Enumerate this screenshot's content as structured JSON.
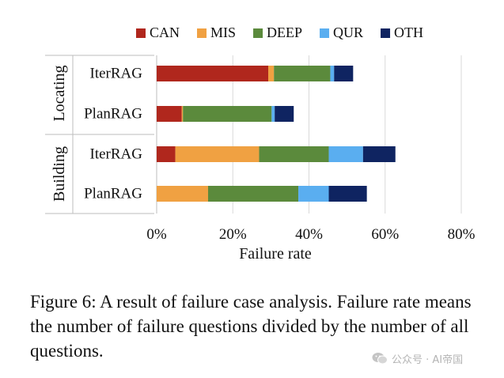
{
  "chart_data": {
    "type": "bar",
    "orientation": "horizontal",
    "stacked": true,
    "title": "",
    "xlabel": "Failure rate",
    "ylabel": "",
    "xlim": [
      0,
      0.8
    ],
    "xticks": [
      0,
      0.2,
      0.4,
      0.6,
      0.8
    ],
    "xtick_labels": [
      "0%",
      "20%",
      "40%",
      "60%",
      "80%"
    ],
    "grid": "vertical major gridlines",
    "legend_position": "top",
    "groups": [
      {
        "label": "Locating",
        "categories": [
          "IterRAG",
          "PlanRAG"
        ]
      },
      {
        "label": "Building",
        "categories": [
          "IterRAG",
          "PlanRAG"
        ]
      }
    ],
    "series": [
      {
        "name": "CAN",
        "color": "#b0271d",
        "values": [
          0.293,
          0.066,
          0.049,
          0.0
        ]
      },
      {
        "name": "MIS",
        "color": "#f0a142",
        "values": [
          0.015,
          0.003,
          0.22,
          0.135
        ]
      },
      {
        "name": "DEEP",
        "color": "#5b8a3c",
        "values": [
          0.148,
          0.233,
          0.183,
          0.237
        ]
      },
      {
        "name": "QUR",
        "color": "#5aaef0",
        "values": [
          0.01,
          0.008,
          0.09,
          0.08
        ]
      },
      {
        "name": "OTH",
        "color": "#0f2461",
        "values": [
          0.05,
          0.05,
          0.085,
          0.1
        ]
      }
    ]
  },
  "caption": "Figure 6: A result of failure case analysis. Failure rate means the number of failure questions divided by the number of all questions.",
  "watermark": {
    "text": "公众号 · AI帝国",
    "icon": "wechat-icon"
  }
}
